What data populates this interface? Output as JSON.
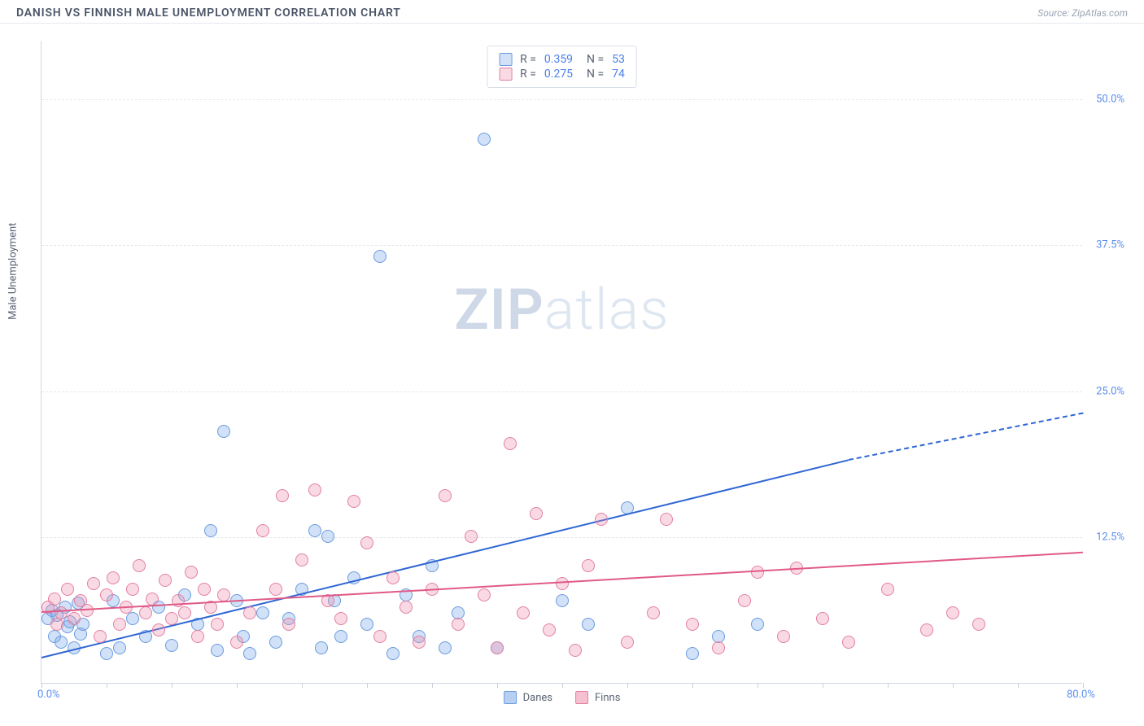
{
  "header": {
    "title": "DANISH VS FINNISH MALE UNEMPLOYMENT CORRELATION CHART",
    "source": "Source: ZipAtlas.com"
  },
  "watermark": {
    "bold": "ZIP",
    "light": "atlas"
  },
  "chart": {
    "type": "scatter",
    "y_axis_label": "Male Unemployment",
    "xlim": [
      0,
      80
    ],
    "ylim": [
      0,
      55
    ],
    "x_ticks": [
      0,
      5,
      10,
      15,
      20,
      25,
      30,
      35,
      40,
      45,
      50,
      55,
      60,
      65,
      70,
      75,
      80
    ],
    "x_tick_labels": {
      "0": "0.0%",
      "80": "80.0%"
    },
    "y_grid": [
      12.5,
      25.0,
      37.5,
      50.0
    ],
    "y_tick_labels": [
      "12.5%",
      "25.0%",
      "37.5%",
      "50.0%"
    ],
    "background_color": "#ffffff",
    "grid_color": "#e3e8ef",
    "axis_color": "#d0d7e2",
    "tick_label_color": "#5b8def",
    "point_radius": 8,
    "series": [
      {
        "name": "Danes",
        "label": "Danes",
        "fill": "rgba(123,169,232,0.35)",
        "stroke": "#6a9be0",
        "trend_color": "#2f66d4",
        "R": "0.359",
        "N": "53",
        "trend": {
          "x1": 0,
          "y1": 2.3,
          "x2_solid": 62,
          "y2_solid": 19.2,
          "x2_dash": 80,
          "y2_dash": 23.2
        },
        "points": [
          [
            0.5,
            5.5
          ],
          [
            0.8,
            6.2
          ],
          [
            1,
            4
          ],
          [
            1.2,
            5.8
          ],
          [
            1.5,
            3.5
          ],
          [
            1.8,
            6.5
          ],
          [
            2,
            4.8
          ],
          [
            2.2,
            5.2
          ],
          [
            2.5,
            3
          ],
          [
            2.8,
            6.8
          ],
          [
            3,
            4.2
          ],
          [
            3.2,
            5
          ],
          [
            5,
            2.5
          ],
          [
            5.5,
            7
          ],
          [
            6,
            3
          ],
          [
            7,
            5.5
          ],
          [
            8,
            4
          ],
          [
            9,
            6.5
          ],
          [
            10,
            3.2
          ],
          [
            11,
            7.5
          ],
          [
            12,
            5
          ],
          [
            13,
            13
          ],
          [
            13.5,
            2.8
          ],
          [
            14,
            21.5
          ],
          [
            15,
            7
          ],
          [
            15.5,
            4
          ],
          [
            16,
            2.5
          ],
          [
            17,
            6
          ],
          [
            18,
            3.5
          ],
          [
            19,
            5.5
          ],
          [
            20,
            8
          ],
          [
            21,
            13
          ],
          [
            21.5,
            3
          ],
          [
            22,
            12.5
          ],
          [
            22.5,
            7
          ],
          [
            23,
            4
          ],
          [
            24,
            9
          ],
          [
            25,
            5
          ],
          [
            26,
            36.5
          ],
          [
            27,
            2.5
          ],
          [
            28,
            7.5
          ],
          [
            29,
            4
          ],
          [
            30,
            10
          ],
          [
            31,
            3
          ],
          [
            32,
            6
          ],
          [
            34,
            46.5
          ],
          [
            35,
            3
          ],
          [
            40,
            7
          ],
          [
            42,
            5
          ],
          [
            45,
            15
          ],
          [
            50,
            2.5
          ],
          [
            52,
            4
          ],
          [
            55,
            5
          ]
        ]
      },
      {
        "name": "Finns",
        "label": "Finns",
        "fill": "rgba(236,140,170,0.32)",
        "stroke": "#e37fa1",
        "trend_color": "#e05a86",
        "R": "0.275",
        "N": "74",
        "trend": {
          "x1": 0,
          "y1": 6.2,
          "x2_solid": 80,
          "y2_solid": 11.3,
          "x2_dash": 80,
          "y2_dash": 11.3
        },
        "points": [
          [
            0.5,
            6.5
          ],
          [
            1,
            7.2
          ],
          [
            1.2,
            5
          ],
          [
            1.5,
            6
          ],
          [
            2,
            8
          ],
          [
            2.5,
            5.5
          ],
          [
            3,
            7
          ],
          [
            3.5,
            6.2
          ],
          [
            4,
            8.5
          ],
          [
            4.5,
            4
          ],
          [
            5,
            7.5
          ],
          [
            5.5,
            9
          ],
          [
            6,
            5
          ],
          [
            6.5,
            6.5
          ],
          [
            7,
            8
          ],
          [
            7.5,
            10
          ],
          [
            8,
            6
          ],
          [
            8.5,
            7.2
          ],
          [
            9,
            4.5
          ],
          [
            9.5,
            8.8
          ],
          [
            10,
            5.5
          ],
          [
            10.5,
            7
          ],
          [
            11,
            6
          ],
          [
            11.5,
            9.5
          ],
          [
            12,
            4
          ],
          [
            12.5,
            8
          ],
          [
            13,
            6.5
          ],
          [
            13.5,
            5
          ],
          [
            14,
            7.5
          ],
          [
            15,
            3.5
          ],
          [
            16,
            6
          ],
          [
            17,
            13
          ],
          [
            18,
            8
          ],
          [
            18.5,
            16
          ],
          [
            19,
            5
          ],
          [
            20,
            10.5
          ],
          [
            21,
            16.5
          ],
          [
            22,
            7
          ],
          [
            23,
            5.5
          ],
          [
            24,
            15.5
          ],
          [
            25,
            12
          ],
          [
            26,
            4
          ],
          [
            27,
            9
          ],
          [
            28,
            6.5
          ],
          [
            29,
            3.5
          ],
          [
            30,
            8
          ],
          [
            31,
            16
          ],
          [
            32,
            5
          ],
          [
            33,
            12.5
          ],
          [
            34,
            7.5
          ],
          [
            35,
            3
          ],
          [
            36,
            20.5
          ],
          [
            37,
            6
          ],
          [
            38,
            14.5
          ],
          [
            39,
            4.5
          ],
          [
            40,
            8.5
          ],
          [
            41,
            2.8
          ],
          [
            42,
            10
          ],
          [
            43,
            14
          ],
          [
            45,
            3.5
          ],
          [
            47,
            6
          ],
          [
            48,
            14
          ],
          [
            50,
            5
          ],
          [
            52,
            3
          ],
          [
            54,
            7
          ],
          [
            55,
            9.5
          ],
          [
            57,
            4
          ],
          [
            58,
            9.8
          ],
          [
            60,
            5.5
          ],
          [
            62,
            3.5
          ],
          [
            65,
            8
          ],
          [
            68,
            4.5
          ],
          [
            70,
            6
          ],
          [
            72,
            5
          ]
        ]
      }
    ],
    "legend_bottom": [
      {
        "label": "Danes",
        "fill": "rgba(123,169,232,0.55)",
        "stroke": "#6a9be0"
      },
      {
        "label": "Finns",
        "fill": "rgba(236,140,170,0.55)",
        "stroke": "#e37fa1"
      }
    ]
  }
}
